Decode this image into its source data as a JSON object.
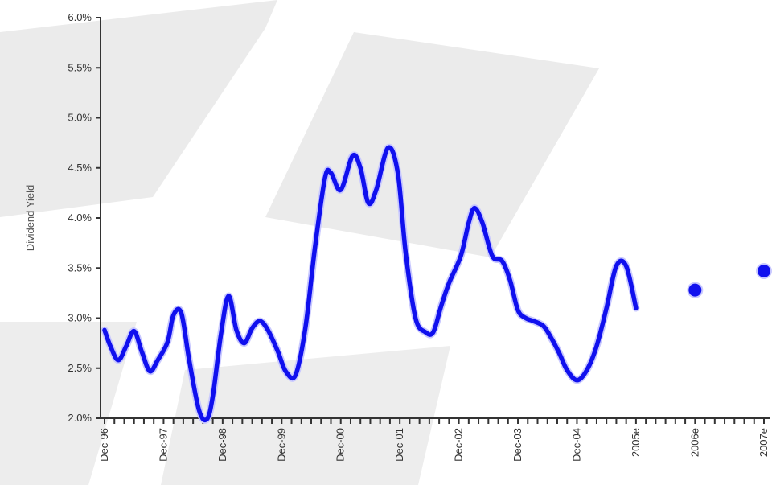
{
  "chart_data": {
    "type": "line",
    "title": "",
    "ylabel": "Dividend Yield",
    "xlabel": "",
    "ylim": [
      2.0,
      6.0
    ],
    "yticks": [
      2.0,
      2.5,
      3.0,
      3.5,
      4.0,
      4.5,
      5.0,
      5.5,
      6.0
    ],
    "ytick_labels": [
      "2.0%",
      "2.5%",
      "3.0%",
      "3.5%",
      "4.0%",
      "4.5%",
      "5.0%",
      "5.5%",
      "6.0%"
    ],
    "xlim": [
      0,
      33.5
    ],
    "xticks_major": [
      {
        "x": 0,
        "label": "Dec-96"
      },
      {
        "x": 3,
        "label": "Dec-97"
      },
      {
        "x": 6,
        "label": "Dec-98"
      },
      {
        "x": 9,
        "label": "Dec-99"
      },
      {
        "x": 12,
        "label": "Dec-00"
      },
      {
        "x": 15,
        "label": "Dec-01"
      },
      {
        "x": 18,
        "label": "Dec-02"
      },
      {
        "x": 21,
        "label": "Dec-03"
      },
      {
        "x": 24,
        "label": "Dec-04"
      },
      {
        "x": 27,
        "label": "2005e"
      },
      {
        "x": 30,
        "label": "2006e"
      },
      {
        "x": 33.5,
        "label": "2007e"
      }
    ],
    "minor_tick_step": 0.5,
    "series": [
      {
        "name": "",
        "style": "line",
        "color": "#1010ee",
        "points": [
          [
            0.0,
            2.88
          ],
          [
            0.3,
            2.72
          ],
          [
            0.7,
            2.58
          ],
          [
            1.1,
            2.72
          ],
          [
            1.5,
            2.87
          ],
          [
            1.9,
            2.66
          ],
          [
            2.3,
            2.47
          ],
          [
            2.7,
            2.58
          ],
          [
            3.2,
            2.76
          ],
          [
            3.5,
            3.03
          ],
          [
            3.9,
            3.05
          ],
          [
            4.3,
            2.58
          ],
          [
            4.8,
            2.08
          ],
          [
            5.2,
            1.99
          ],
          [
            5.5,
            2.22
          ],
          [
            5.9,
            2.82
          ],
          [
            6.3,
            3.22
          ],
          [
            6.7,
            2.88
          ],
          [
            7.1,
            2.75
          ],
          [
            7.5,
            2.9
          ],
          [
            7.9,
            2.97
          ],
          [
            8.3,
            2.88
          ],
          [
            8.8,
            2.67
          ],
          [
            9.2,
            2.47
          ],
          [
            9.7,
            2.43
          ],
          [
            10.2,
            2.9
          ],
          [
            10.7,
            3.72
          ],
          [
            11.2,
            4.4
          ],
          [
            11.5,
            4.45
          ],
          [
            12.0,
            4.28
          ],
          [
            12.6,
            4.62
          ],
          [
            13.0,
            4.5
          ],
          [
            13.4,
            4.15
          ],
          [
            13.8,
            4.28
          ],
          [
            14.4,
            4.7
          ],
          [
            14.9,
            4.45
          ],
          [
            15.3,
            3.65
          ],
          [
            15.8,
            3.0
          ],
          [
            16.3,
            2.86
          ],
          [
            16.7,
            2.86
          ],
          [
            17.1,
            3.12
          ],
          [
            17.5,
            3.35
          ],
          [
            18.1,
            3.62
          ],
          [
            18.5,
            3.95
          ],
          [
            18.8,
            4.1
          ],
          [
            19.2,
            3.95
          ],
          [
            19.7,
            3.62
          ],
          [
            20.2,
            3.57
          ],
          [
            20.6,
            3.38
          ],
          [
            21.0,
            3.08
          ],
          [
            21.4,
            3.0
          ],
          [
            21.8,
            2.97
          ],
          [
            22.3,
            2.92
          ],
          [
            22.7,
            2.8
          ],
          [
            23.1,
            2.65
          ],
          [
            23.5,
            2.48
          ],
          [
            24.0,
            2.38
          ],
          [
            24.5,
            2.48
          ],
          [
            25.0,
            2.72
          ],
          [
            25.5,
            3.1
          ],
          [
            26.0,
            3.52
          ],
          [
            26.5,
            3.52
          ],
          [
            27.0,
            3.1
          ]
        ]
      },
      {
        "name": "",
        "style": "points",
        "color": "#1010ee",
        "points": [
          [
            30.0,
            3.28
          ],
          [
            33.5,
            3.47
          ]
        ]
      }
    ]
  }
}
